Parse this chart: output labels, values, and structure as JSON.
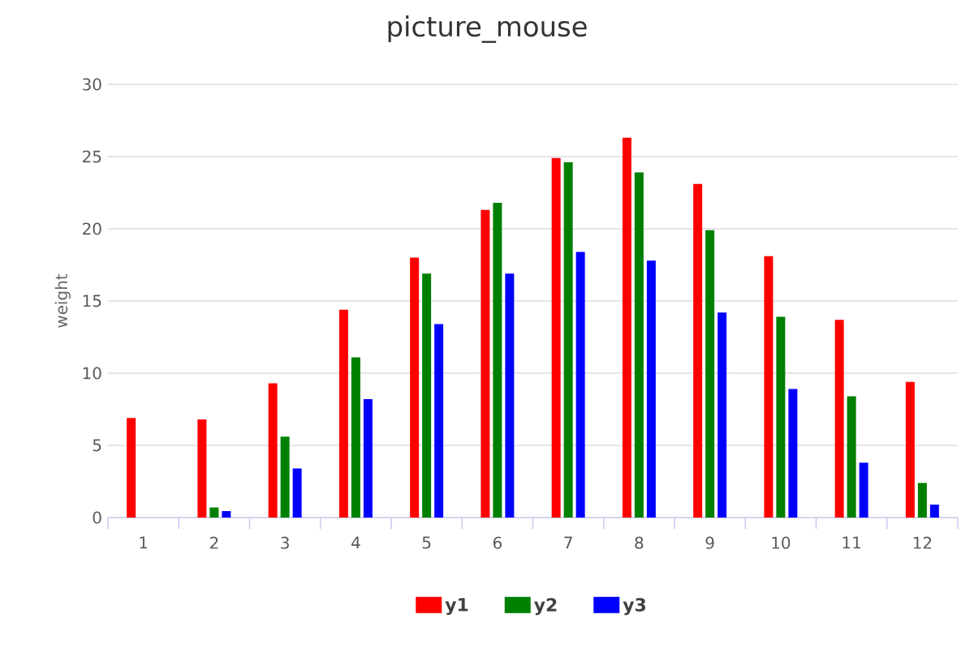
{
  "chart_data": {
    "type": "bar",
    "title": "picture_mouse",
    "ylabel": "weight",
    "categories": [
      "1",
      "2",
      "3",
      "4",
      "5",
      "6",
      "7",
      "8",
      "9",
      "10",
      "11",
      "12"
    ],
    "series": [
      {
        "name": "y1",
        "color": "#ff0000",
        "values": [
          6.9,
          6.8,
          9.3,
          14.4,
          18.0,
          21.3,
          24.9,
          26.3,
          23.1,
          18.1,
          13.7,
          9.4
        ]
      },
      {
        "name": "y2",
        "color": "#008000",
        "values": [
          0,
          0.7,
          5.6,
          11.1,
          16.9,
          21.8,
          24.6,
          23.9,
          19.9,
          13.9,
          8.4,
          2.4
        ]
      },
      {
        "name": "y3",
        "color": "#0000ff",
        "values": [
          0,
          0.45,
          3.4,
          8.2,
          13.4,
          16.9,
          18.4,
          17.8,
          14.2,
          8.9,
          3.8,
          0.9
        ]
      }
    ],
    "ylim": [
      0,
      30
    ],
    "yticks": [
      0,
      5,
      10,
      15,
      20,
      25,
      30
    ],
    "grid": "y",
    "legend": "bottom"
  }
}
